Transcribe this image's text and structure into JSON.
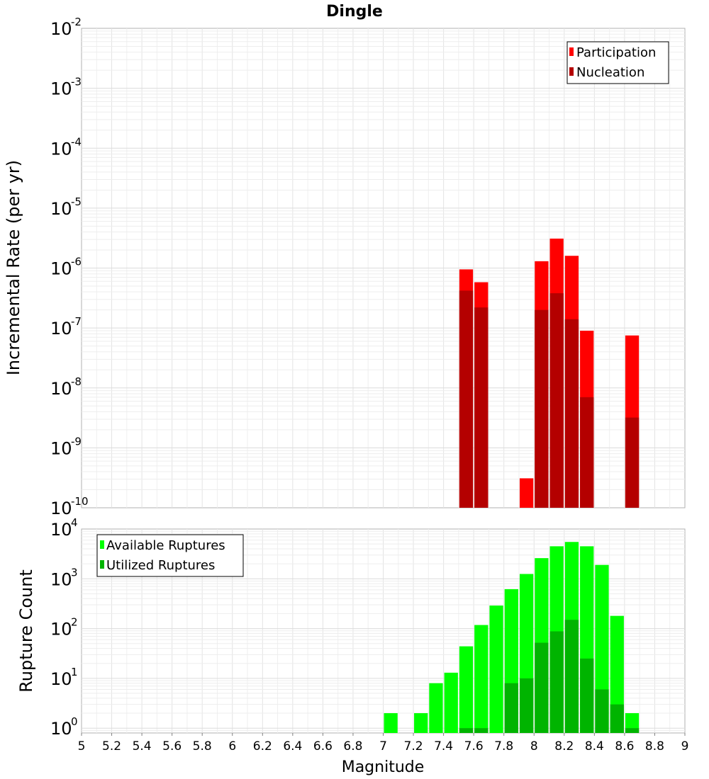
{
  "figure": {
    "title": "Dingle",
    "xlabel": "Magnitude"
  },
  "chart_data": [
    {
      "type": "bar",
      "title": "Dingle",
      "xlabel": "Magnitude",
      "ylabel": "Incremental Rate (per yr)",
      "yscale": "log",
      "xlim": [
        5,
        9
      ],
      "ylim": [
        1e-10,
        0.01
      ],
      "bin_width": 0.1,
      "yticks": [
        {
          "base": "10",
          "exp": "-2",
          "value": 0.01
        },
        {
          "base": "10",
          "exp": "-3",
          "value": 0.001
        },
        {
          "base": "10",
          "exp": "-4",
          "value": 0.0001
        },
        {
          "base": "10",
          "exp": "-5",
          "value": 1e-05
        },
        {
          "base": "10",
          "exp": "-6",
          "value": 1e-06
        },
        {
          "base": "10",
          "exp": "-7",
          "value": 1e-07
        },
        {
          "base": "10",
          "exp": "-8",
          "value": 1e-08
        },
        {
          "base": "10",
          "exp": "-9",
          "value": 1e-09
        },
        {
          "base": "10",
          "exp": "-10",
          "value": 1e-10
        }
      ],
      "legend": {
        "position": "top-right",
        "entries": [
          {
            "label": "Participation",
            "color": "#ff0000"
          },
          {
            "label": "Nucleation",
            "color": "#b40000"
          }
        ]
      },
      "series": [
        {
          "name": "Participation",
          "color": "#ff0000",
          "x": [
            7.55,
            7.65,
            7.95,
            8.05,
            8.15,
            8.25,
            8.35,
            8.65
          ],
          "values": [
            9.5e-07,
            5.8e-07,
            3.1e-10,
            1.3e-06,
            3.1e-06,
            1.6e-06,
            9e-08,
            7.5e-08
          ]
        },
        {
          "name": "Nucleation",
          "color": "#b40000",
          "x": [
            7.55,
            7.65,
            7.95,
            8.05,
            8.15,
            8.25,
            8.35,
            8.65
          ],
          "values": [
            4.2e-07,
            2.2e-07,
            0,
            2e-07,
            3.8e-07,
            1.4e-07,
            7e-09,
            3.2e-09
          ]
        }
      ]
    },
    {
      "type": "bar",
      "xlabel": "Magnitude",
      "ylabel": "Rupture Count",
      "yscale": "log",
      "xlim": [
        5,
        9
      ],
      "ylim": [
        0.8,
        10000
      ],
      "bin_width": 0.1,
      "xticks": [
        "5",
        "5.2",
        "5.4",
        "5.6",
        "5.8",
        "6",
        "6.2",
        "6.4",
        "6.6",
        "6.8",
        "7",
        "7.2",
        "7.4",
        "7.6",
        "7.8",
        "8",
        "8.2",
        "8.4",
        "8.6",
        "8.8",
        "9"
      ],
      "yticks": [
        {
          "base": "10",
          "exp": "4",
          "value": 10000
        },
        {
          "base": "10",
          "exp": "3",
          "value": 1000
        },
        {
          "base": "10",
          "exp": "2",
          "value": 100
        },
        {
          "base": "10",
          "exp": "1",
          "value": 10
        },
        {
          "base": "10",
          "exp": "0",
          "value": 1
        }
      ],
      "legend": {
        "position": "top-left",
        "entries": [
          {
            "label": "Available Ruptures",
            "color": "#00ff00"
          },
          {
            "label": "Utilized Ruptures",
            "color": "#00b400"
          }
        ]
      },
      "series": [
        {
          "name": "Available Ruptures",
          "color": "#00ff00",
          "x": [
            7.05,
            7.25,
            7.35,
            7.45,
            7.55,
            7.65,
            7.75,
            7.85,
            7.95,
            8.05,
            8.15,
            8.25,
            8.35,
            8.45,
            8.55,
            8.65
          ],
          "values": [
            2,
            2,
            8,
            13,
            44,
            118,
            290,
            620,
            1250,
            2600,
            4500,
            5500,
            4500,
            1900,
            180,
            2
          ]
        },
        {
          "name": "Utilized Ruptures",
          "color": "#00b400",
          "x": [
            7.55,
            7.65,
            7.85,
            7.95,
            8.05,
            8.15,
            8.25,
            8.35,
            8.45,
            8.55,
            8.65
          ],
          "values": [
            1,
            1,
            8,
            10,
            52,
            88,
            150,
            25,
            6,
            3,
            1
          ]
        }
      ]
    }
  ]
}
